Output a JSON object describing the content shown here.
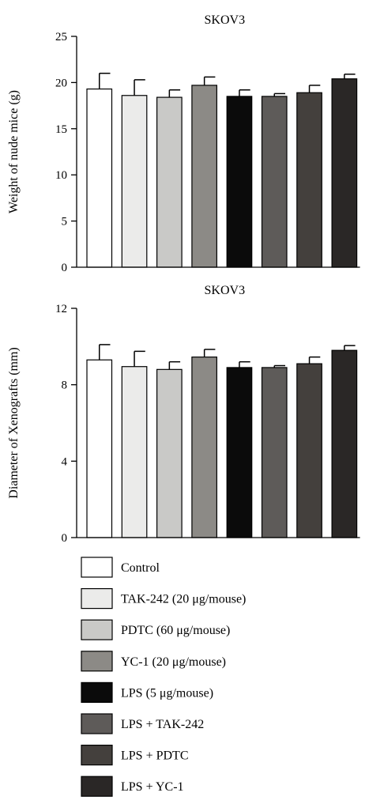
{
  "charts": [
    {
      "type": "bar",
      "title": "SKOV3",
      "ylabel": "Weight of nude mice (g)",
      "xlabel": "",
      "ylim": [
        0,
        25
      ],
      "yticks": [
        0,
        5,
        10,
        15,
        20,
        25
      ],
      "categories": [
        "Control",
        "TAK-242 (20 μg/mouse)",
        "PDTC (60 μg/mouse)",
        "YC-1 (20 μg/mouse)",
        "LPS (5 μg/mouse)",
        "LPS + TAK-242",
        "LPS + PDTC",
        "LPS + YC-1"
      ],
      "values": [
        19.3,
        18.6,
        18.4,
        19.7,
        18.5,
        18.5,
        18.9,
        20.4
      ],
      "errors": [
        1.7,
        1.7,
        0.8,
        0.9,
        0.7,
        0.3,
        0.8,
        0.5
      ]
    },
    {
      "type": "bar",
      "title": "SKOV3",
      "ylabel": "Diameter of Xenografts (mm)",
      "xlabel": "",
      "ylim": [
        0,
        12
      ],
      "yticks": [
        0,
        4,
        8,
        12
      ],
      "categories": [
        "Control",
        "TAK-242 (20 μg/mouse)",
        "PDTC (60 μg/mouse)",
        "YC-1 (20 μg/mouse)",
        "LPS (5 μg/mouse)",
        "LPS + TAK-242",
        "LPS + PDTC",
        "LPS + YC-1"
      ],
      "values": [
        9.3,
        8.95,
        8.8,
        9.45,
        8.9,
        8.9,
        9.1,
        9.8
      ],
      "errors": [
        0.8,
        0.8,
        0.4,
        0.4,
        0.3,
        0.1,
        0.35,
        0.25
      ]
    }
  ],
  "legend": {
    "placement": "bottom",
    "items": [
      {
        "label": "Control",
        "color": "#ffffff"
      },
      {
        "label": "TAK-242 (20 μg/mouse)",
        "color": "#ebebea"
      },
      {
        "label": "PDTC (60 μg/mouse)",
        "color": "#c9c9c7"
      },
      {
        "label": "YC-1 (20 μg/mouse)",
        "color": "#8c8a86"
      },
      {
        "label": "LPS (5 μg/mouse)",
        "color": "#0b0b0b"
      },
      {
        "label": "LPS + TAK-242",
        "color": "#5e5b59"
      },
      {
        "label": "LPS + PDTC",
        "color": "#44403d"
      },
      {
        "label": "LPS + YC-1",
        "color": "#2a2726"
      }
    ]
  }
}
